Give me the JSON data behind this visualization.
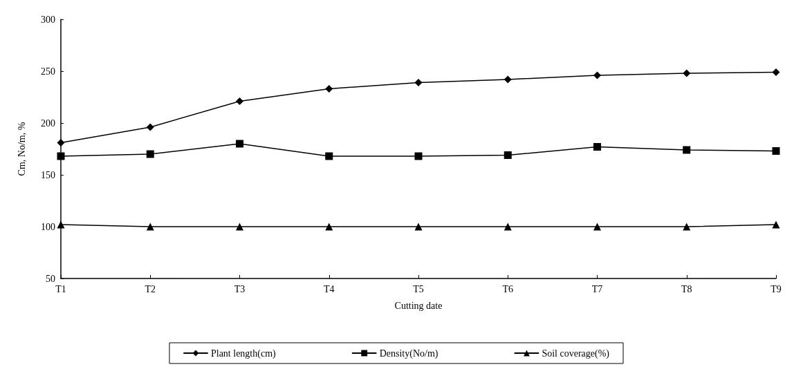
{
  "chart_data": {
    "type": "line",
    "xlabel": "Cutting date",
    "ylabel": "Cm, No/m, %",
    "categories": [
      "T1",
      "T2",
      "T3",
      "T4",
      "T5",
      "T6",
      "T7",
      "T8",
      "T9"
    ],
    "series": [
      {
        "name": "Plant length(cm)",
        "color": "#000000",
        "marker": "diamond",
        "values": [
          181,
          196,
          221,
          233,
          239,
          242,
          246,
          248,
          249
        ]
      },
      {
        "name": "Density(No/m)",
        "color": "#000000",
        "marker": "square",
        "values": [
          168,
          170,
          180,
          168,
          168,
          169,
          177,
          174,
          173
        ]
      },
      {
        "name": "Soil coverage(%)",
        "color": "#000000",
        "marker": "triangle",
        "values": [
          102,
          100,
          100,
          100,
          100,
          100,
          100,
          100,
          102
        ]
      }
    ],
    "ylim": [
      50,
      300
    ],
    "yticks": [
      50,
      100,
      150,
      200,
      250,
      300
    ],
    "grid": false,
    "legend": "bottom",
    "line_style": "solid"
  }
}
